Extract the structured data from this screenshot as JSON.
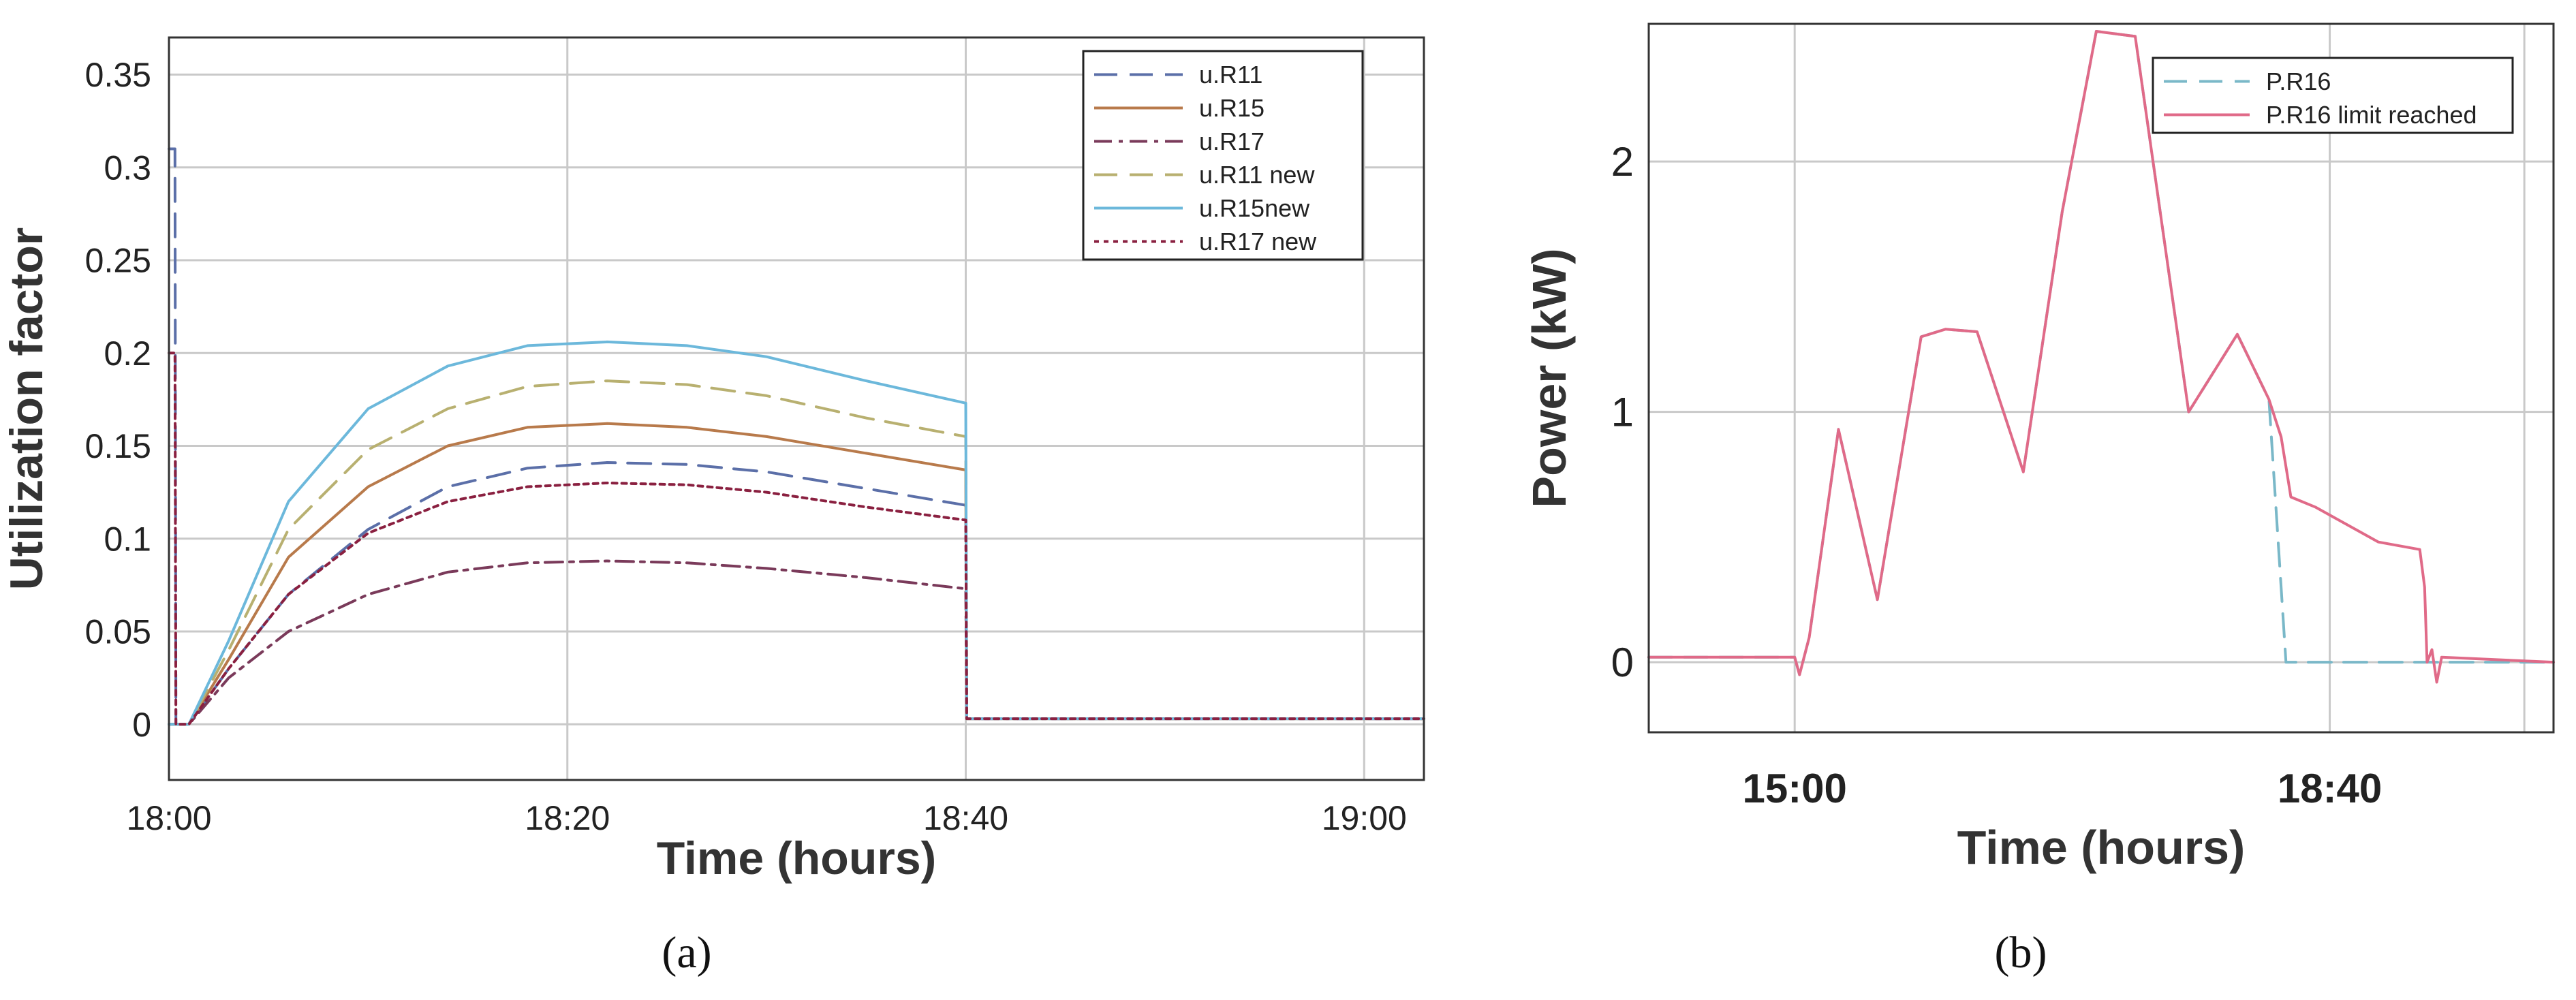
{
  "figure": {
    "panels": [
      {
        "caption": "(a)",
        "xlabel": "Time (hours)",
        "ylabel": "Utilization factor",
        "xticks": [
          "18:00",
          "18:20",
          "18:40",
          "19:00"
        ],
        "yticks": [
          "0",
          "0.05",
          "0.1",
          "0.15",
          "0.2",
          "0.25",
          "0.3",
          "0.35"
        ]
      },
      {
        "caption": "(b)",
        "xlabel": "Time (hours)",
        "ylabel": "Power (kW)",
        "xticks": [
          "15:00",
          "18:40"
        ],
        "yticks": [
          "0",
          "1",
          "2"
        ]
      }
    ]
  },
  "chart_data": [
    {
      "type": "line",
      "title": "",
      "xlabel": "Time (hours)",
      "ylabel": "Utilization factor",
      "x_unit": "minutes after 18:00",
      "xlim": [
        0,
        63
      ],
      "ylim": [
        -0.03,
        0.37
      ],
      "grid": true,
      "legend_position": "top-right",
      "series": [
        {
          "name": "u.R11",
          "color": "#5b6fa8",
          "dash": "dash",
          "points": [
            [
              0,
              0.31
            ],
            [
              0.3,
              0.31
            ],
            [
              0.35,
              0
            ],
            [
              1,
              0
            ],
            [
              3,
              0.03
            ],
            [
              6,
              0.07
            ],
            [
              10,
              0.105
            ],
            [
              14,
              0.128
            ],
            [
              18,
              0.138
            ],
            [
              22,
              0.141
            ],
            [
              26,
              0.14
            ],
            [
              30,
              0.136
            ],
            [
              35,
              0.127
            ],
            [
              40,
              0.118
            ],
            [
              40.05,
              0.003
            ],
            [
              63,
              0.003
            ]
          ]
        },
        {
          "name": "u.R15",
          "color": "#b87a4b",
          "dash": "solid",
          "points": [
            [
              0,
              0
            ],
            [
              1,
              0
            ],
            [
              3,
              0.035
            ],
            [
              6,
              0.09
            ],
            [
              10,
              0.128
            ],
            [
              14,
              0.15
            ],
            [
              18,
              0.16
            ],
            [
              22,
              0.162
            ],
            [
              26,
              0.16
            ],
            [
              30,
              0.155
            ],
            [
              35,
              0.146
            ],
            [
              40,
              0.137
            ],
            [
              40.05,
              0.003
            ],
            [
              63,
              0.003
            ]
          ]
        },
        {
          "name": "u.R17",
          "color": "#7a3a5a",
          "dash": "dashdot",
          "points": [
            [
              0,
              0
            ],
            [
              1,
              0
            ],
            [
              3,
              0.025
            ],
            [
              6,
              0.05
            ],
            [
              10,
              0.07
            ],
            [
              14,
              0.082
            ],
            [
              18,
              0.087
            ],
            [
              22,
              0.088
            ],
            [
              26,
              0.087
            ],
            [
              30,
              0.084
            ],
            [
              35,
              0.079
            ],
            [
              40,
              0.073
            ],
            [
              40.05,
              0.003
            ],
            [
              63,
              0.003
            ]
          ]
        },
        {
          "name": "u.R11 new",
          "color": "#b8b070",
          "dash": "dash",
          "points": [
            [
              0,
              0
            ],
            [
              1,
              0
            ],
            [
              3,
              0.04
            ],
            [
              6,
              0.105
            ],
            [
              10,
              0.148
            ],
            [
              14,
              0.17
            ],
            [
              18,
              0.182
            ],
            [
              22,
              0.185
            ],
            [
              26,
              0.183
            ],
            [
              30,
              0.177
            ],
            [
              35,
              0.165
            ],
            [
              40,
              0.155
            ],
            [
              40.05,
              0.003
            ],
            [
              63,
              0.003
            ]
          ]
        },
        {
          "name": "u.R15new",
          "color": "#6cb8db",
          "dash": "solid",
          "points": [
            [
              0,
              0
            ],
            [
              1,
              0
            ],
            [
              3,
              0.045
            ],
            [
              6,
              0.12
            ],
            [
              10,
              0.17
            ],
            [
              14,
              0.193
            ],
            [
              18,
              0.204
            ],
            [
              22,
              0.206
            ],
            [
              26,
              0.204
            ],
            [
              30,
              0.198
            ],
            [
              35,
              0.185
            ],
            [
              40,
              0.173
            ],
            [
              40.05,
              0.003
            ],
            [
              63,
              0.003
            ]
          ]
        },
        {
          "name": "u.R17 new",
          "color": "#8a2040",
          "dash": "dot",
          "points": [
            [
              0,
              0.2
            ],
            [
              0.3,
              0.2
            ],
            [
              0.35,
              0
            ],
            [
              1,
              0
            ],
            [
              3,
              0.03
            ],
            [
              6,
              0.07
            ],
            [
              10,
              0.103
            ],
            [
              14,
              0.12
            ],
            [
              18,
              0.128
            ],
            [
              22,
              0.13
            ],
            [
              26,
              0.129
            ],
            [
              30,
              0.125
            ],
            [
              35,
              0.117
            ],
            [
              40,
              0.11
            ],
            [
              40.05,
              0.003
            ],
            [
              63,
              0.003
            ]
          ]
        }
      ]
    },
    {
      "type": "line",
      "title": "",
      "xlabel": "Time (hours)",
      "ylabel": "Power (kW)",
      "x_unit": "minutes after 15:00",
      "xlim": [
        -60,
        312
      ],
      "ylim": [
        -0.28,
        2.55
      ],
      "grid": true,
      "legend_position": "top-right",
      "series": [
        {
          "name": "P.R16",
          "color": "#7ab8c8",
          "dash": "dash",
          "points": [
            [
              -60,
              0.02
            ],
            [
              0,
              0.02
            ],
            [
              2,
              -0.05
            ],
            [
              6,
              0.1
            ],
            [
              18,
              0.93
            ],
            [
              34,
              0.25
            ],
            [
              52,
              1.3
            ],
            [
              62,
              1.33
            ],
            [
              75,
              1.32
            ],
            [
              94,
              0.76
            ],
            [
              110,
              1.8
            ],
            [
              124,
              2.52
            ],
            [
              140,
              2.5
            ],
            [
              162,
              1.0
            ],
            [
              182,
              1.31
            ],
            [
              195,
              1.05
            ],
            [
              202,
              0.0
            ],
            [
              220,
              0.0
            ],
            [
              272,
              0.0
            ],
            [
              312,
              0.0
            ]
          ]
        },
        {
          "name": "P.R16 limit reached",
          "color": "#e06a88",
          "dash": "solid",
          "points": [
            [
              -60,
              0.02
            ],
            [
              0,
              0.02
            ],
            [
              2,
              -0.05
            ],
            [
              6,
              0.1
            ],
            [
              18,
              0.93
            ],
            [
              34,
              0.25
            ],
            [
              52,
              1.3
            ],
            [
              62,
              1.33
            ],
            [
              75,
              1.32
            ],
            [
              94,
              0.76
            ],
            [
              110,
              1.8
            ],
            [
              124,
              2.52
            ],
            [
              140,
              2.5
            ],
            [
              162,
              1.0
            ],
            [
              182,
              1.31
            ],
            [
              195,
              1.05
            ],
            [
              200,
              0.9
            ],
            [
              204,
              0.66
            ],
            [
              214,
              0.62
            ],
            [
              240,
              0.48
            ],
            [
              257,
              0.45
            ],
            [
              259,
              0.3
            ],
            [
              260,
              0.0
            ],
            [
              262,
              0.05
            ],
            [
              264,
              -0.08
            ],
            [
              266,
              0.02
            ],
            [
              312,
              0.0
            ]
          ]
        }
      ]
    }
  ]
}
